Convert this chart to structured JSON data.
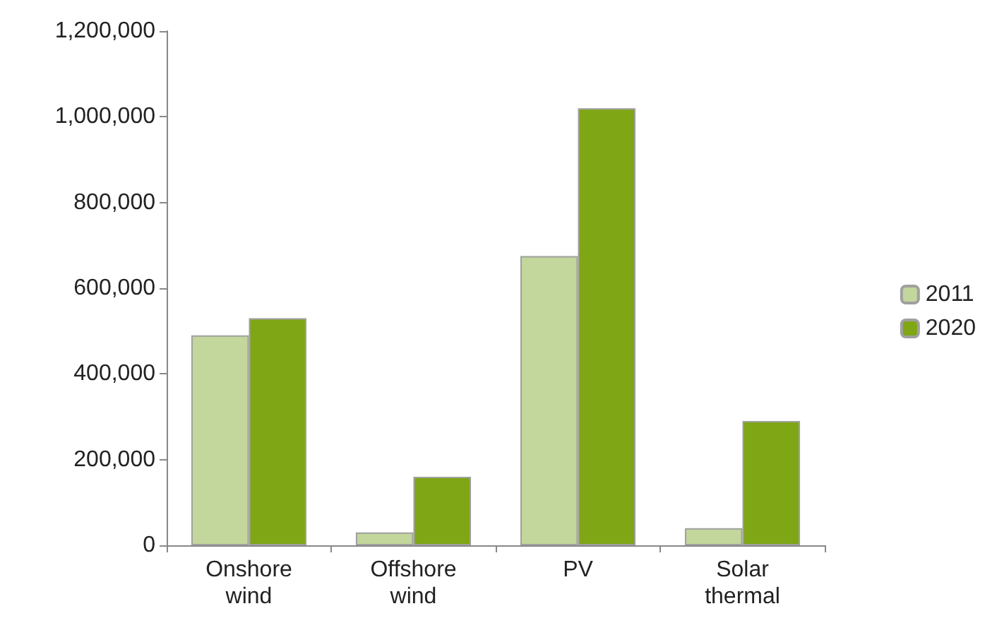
{
  "chart_data": {
    "type": "bar",
    "categories": [
      "Onshore\nwind",
      "Offshore\nwind",
      "PV",
      "Solar\nthermal"
    ],
    "series": [
      {
        "name": "2011",
        "color": "#c3d69b",
        "values": [
          490000,
          30000,
          675000,
          40000
        ]
      },
      {
        "name": "2020",
        "color": "#7fa614",
        "values": [
          530000,
          160000,
          1020000,
          290000
        ]
      }
    ],
    "ylim": [
      0,
      1200000
    ],
    "yticks": [
      {
        "value": 0,
        "label": "0"
      },
      {
        "value": 200000,
        "label": "200,000"
      },
      {
        "value": 400000,
        "label": "400,000"
      },
      {
        "value": 600000,
        "label": "600,000"
      },
      {
        "value": 800000,
        "label": "800,000"
      },
      {
        "value": 1000000,
        "label": "1,000,000"
      },
      {
        "value": 1200000,
        "label": "1,200,000"
      }
    ],
    "grid": false,
    "legend": "right"
  }
}
